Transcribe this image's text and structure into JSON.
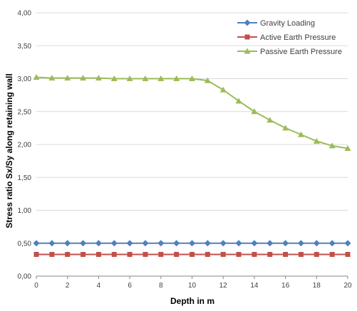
{
  "chart_data": {
    "type": "line",
    "title": "",
    "xlabel": "Depth in m",
    "ylabel": "Stress ratio Sx/Sy along retaining wall",
    "xlim": [
      0,
      20
    ],
    "ylim": [
      0,
      4
    ],
    "x_ticks": [
      "0",
      "2",
      "4",
      "6",
      "8",
      "10",
      "12",
      "14",
      "16",
      "18",
      "20"
    ],
    "y_ticks": [
      "0,00",
      "0,50",
      "1,00",
      "1,50",
      "2,00",
      "2,50",
      "3,00",
      "3,50",
      "4,00"
    ],
    "grid": "horizontal",
    "legend_position": "top-right",
    "x": [
      0,
      1,
      2,
      3,
      4,
      5,
      6,
      7,
      8,
      9,
      10,
      11,
      12,
      13,
      14,
      15,
      16,
      17,
      18,
      19,
      20
    ],
    "series": [
      {
        "name": "Gravity Loading",
        "color": "#4F81BD",
        "marker": "diamond",
        "values": [
          0.5,
          0.5,
          0.5,
          0.5,
          0.5,
          0.5,
          0.5,
          0.5,
          0.5,
          0.5,
          0.5,
          0.5,
          0.5,
          0.5,
          0.5,
          0.5,
          0.5,
          0.5,
          0.5,
          0.5,
          0.5
        ]
      },
      {
        "name": "Active Earth Pressure",
        "color": "#C0504D",
        "marker": "square",
        "values": [
          0.33,
          0.33,
          0.33,
          0.33,
          0.33,
          0.33,
          0.33,
          0.33,
          0.33,
          0.33,
          0.33,
          0.33,
          0.33,
          0.33,
          0.33,
          0.33,
          0.33,
          0.33,
          0.33,
          0.33,
          0.33
        ]
      },
      {
        "name": "Passive Earth Pressure",
        "color": "#9BBB59",
        "marker": "triangle",
        "values": [
          3.02,
          3.01,
          3.01,
          3.01,
          3.01,
          3.0,
          3.0,
          3.0,
          3.0,
          3.0,
          3.0,
          2.97,
          2.83,
          2.66,
          2.5,
          2.37,
          2.25,
          2.15,
          2.05,
          1.98,
          1.94
        ]
      }
    ]
  }
}
